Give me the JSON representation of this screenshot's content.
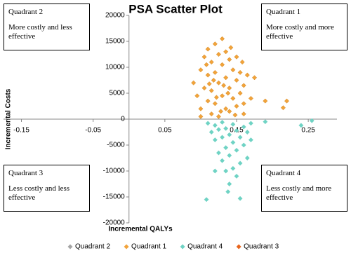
{
  "chart_data": {
    "type": "scatter",
    "title": "PSA Scatter Plot",
    "x_label": "Incremental QALYs",
    "y_label": "Incremental Costs",
    "xlim": [
      -0.175,
      0.29
    ],
    "ylim": [
      -20000,
      20000
    ],
    "xticks": [
      -0.15,
      -0.05,
      0.05,
      0.15,
      0.25
    ],
    "yticks": [
      -20000,
      -15000,
      -10000,
      -5000,
      0,
      5000,
      10000,
      15000,
      20000
    ],
    "legend": "bottom",
    "series": [
      {
        "name": "Quadrant 2",
        "color": "#a5a5a5",
        "x": [],
        "y": []
      },
      {
        "name": "Quadrant 1",
        "color": "#f2a33a",
        "x": [
          0.09,
          0.095,
          0.1,
          0.1,
          0.105,
          0.105,
          0.11,
          0.11,
          0.11,
          0.115,
          0.115,
          0.115,
          0.12,
          0.12,
          0.12,
          0.125,
          0.125,
          0.125,
          0.13,
          0.13,
          0.13,
          0.135,
          0.135,
          0.135,
          0.14,
          0.14,
          0.14,
          0.145,
          0.145,
          0.15,
          0.15,
          0.15,
          0.155,
          0.155,
          0.16,
          0.16,
          0.165,
          0.17,
          0.175,
          0.19,
          0.215,
          0.22,
          0.1,
          0.108,
          0.118,
          0.128,
          0.138,
          0.148,
          0.142,
          0.132,
          0.122,
          0.112,
          0.16,
          0.158
        ],
        "y": [
          7000,
          4500,
          9500,
          2000,
          12000,
          6000,
          13500,
          3500,
          8500,
          11000,
          1000,
          5500,
          14500,
          9000,
          3000,
          12500,
          7000,
          500,
          15500,
          10500,
          4500,
          13000,
          8000,
          2000,
          11500,
          6000,
          1500,
          9500,
          4000,
          12000,
          7500,
          2500,
          9000,
          5000,
          6500,
          1000,
          8500,
          4000,
          8000,
          3500,
          2200,
          3500,
          500,
          10500,
          7500,
          1500,
          5000,
          800,
          13800,
          6500,
          4200,
          6800,
          3000,
          11000
        ]
      },
      {
        "name": "Quadrant 4",
        "color": "#6fd3c4",
        "x": [
          0.11,
          0.115,
          0.12,
          0.12,
          0.125,
          0.125,
          0.13,
          0.13,
          0.13,
          0.135,
          0.135,
          0.135,
          0.14,
          0.14,
          0.14,
          0.145,
          0.145,
          0.145,
          0.15,
          0.15,
          0.15,
          0.155,
          0.155,
          0.16,
          0.16,
          0.165,
          0.165,
          0.17,
          0.17,
          0.108,
          0.155,
          0.138,
          0.19,
          0.24,
          0.255,
          0.12
        ],
        "y": [
          -800,
          -2500,
          -4000,
          -1200,
          -6500,
          -2000,
          -8000,
          -3500,
          -600,
          -10000,
          -5500,
          -1800,
          -12500,
          -7000,
          -3000,
          -9500,
          -4500,
          -1000,
          -11000,
          -6000,
          -2200,
          -8500,
          -3500,
          -5000,
          -1500,
          -7500,
          -2500,
          -4000,
          -800,
          -15500,
          -15300,
          -14000,
          -500,
          -1200,
          -300,
          -10000
        ]
      },
      {
        "name": "Quadrant 3",
        "color": "#e8641c",
        "x": [],
        "y": []
      }
    ],
    "quadrants": [
      {
        "title": "Quadrant 2",
        "text": "More costly and less effective"
      },
      {
        "title": "Quadrant 1",
        "text": "More costly and more effective"
      },
      {
        "title": "Quadrant 3",
        "text": "Less costly and less effective"
      },
      {
        "title": "Quadrant 4",
        "text": "Less costly and more effective"
      }
    ]
  }
}
